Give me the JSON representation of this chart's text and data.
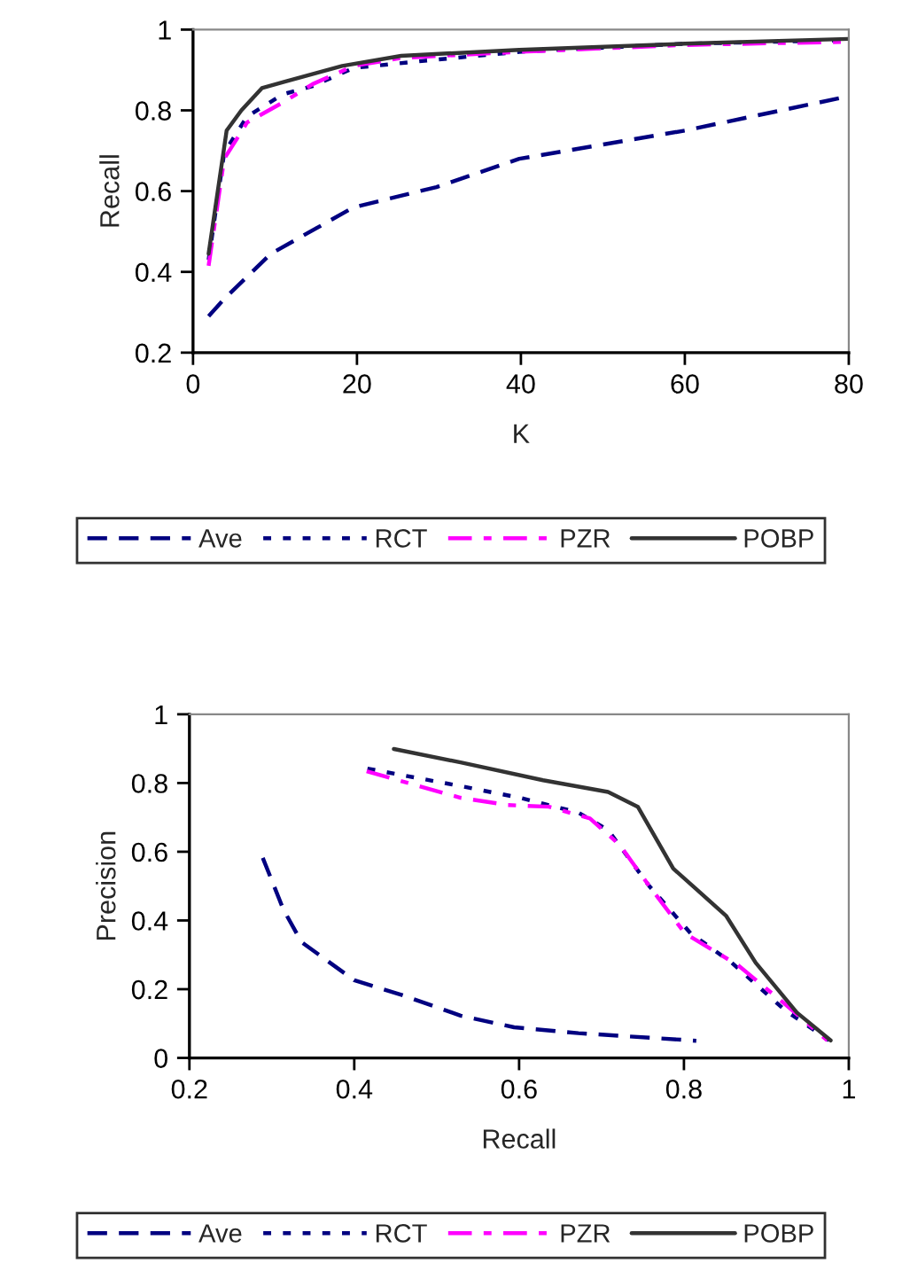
{
  "chart_data": [
    {
      "type": "line",
      "xlabel": "K",
      "ylabel": "Recall",
      "xlim": [
        0,
        80
      ],
      "xticks": [
        0,
        20,
        40,
        60,
        80
      ],
      "ylim": [
        0.2,
        1
      ],
      "yticks": [
        0.2,
        0.4,
        0.6,
        0.8,
        1
      ],
      "grid": false,
      "legend": "bottom",
      "marker": "none",
      "series": [
        {
          "name": "Ave",
          "color": "#000080",
          "line_style": "dashed",
          "x": [
            1.9,
            3.9,
            9.5,
            19.6,
            29.7,
            39.8,
            60,
            80
          ],
          "values": [
            0.29,
            0.335,
            0.445,
            0.56,
            0.61,
            0.68,
            0.75,
            0.835
          ]
        },
        {
          "name": "RCT",
          "color": "#000080",
          "line_style": "dotted",
          "x": [
            1.9,
            3.8,
            6.6,
            11,
            14.6,
            19.6,
            26.8,
            39.8,
            60,
            80
          ],
          "values": [
            0.43,
            0.695,
            0.785,
            0.84,
            0.86,
            0.905,
            0.92,
            0.945,
            0.965,
            0.974
          ]
        },
        {
          "name": "PZR",
          "color": "#ff00ff",
          "line_style": "dashdot",
          "x": [
            1.9,
            3.8,
            6.6,
            11,
            14.6,
            19.6,
            25.4,
            39.8,
            60,
            80
          ],
          "values": [
            0.415,
            0.68,
            0.77,
            0.82,
            0.865,
            0.91,
            0.93,
            0.945,
            0.962,
            0.97
          ]
        },
        {
          "name": "POBP",
          "color": "#333333",
          "line_style": "solid",
          "x": [
            1.9,
            4.1,
            5.9,
            8.4,
            11,
            18.2,
            25.4,
            39.8,
            60,
            80
          ],
          "values": [
            0.445,
            0.75,
            0.8,
            0.855,
            0.87,
            0.91,
            0.935,
            0.95,
            0.965,
            0.977
          ]
        }
      ]
    },
    {
      "type": "line",
      "xlabel": "Recall",
      "ylabel": "Precision",
      "xlim": [
        0.2,
        1
      ],
      "xticks": [
        0.2,
        0.4,
        0.6,
        0.8,
        1
      ],
      "ylim": [
        0,
        1
      ],
      "yticks": [
        0,
        0.2,
        0.4,
        0.6,
        0.8,
        1
      ],
      "grid": false,
      "legend": "bottom",
      "marker": "none",
      "series": [
        {
          "name": "Ave",
          "color": "#000080",
          "line_style": "dashed",
          "x": [
            0.289,
            0.314,
            0.336,
            0.4,
            0.458,
            0.529,
            0.594,
            0.672,
            0.815
          ],
          "values": [
            0.582,
            0.432,
            0.337,
            0.226,
            0.183,
            0.123,
            0.089,
            0.072,
            0.05
          ]
        },
        {
          "name": "RCT",
          "color": "#000080",
          "line_style": "dotted",
          "x": [
            0.416,
            0.529,
            0.601,
            0.672,
            0.708,
            0.758,
            0.808,
            0.858,
            0.922,
            0.976
          ],
          "values": [
            0.842,
            0.791,
            0.757,
            0.714,
            0.663,
            0.5,
            0.363,
            0.277,
            0.14,
            0.051
          ]
        },
        {
          "name": "PZR",
          "color": "#ff00ff",
          "line_style": "dashdot",
          "x": [
            0.415,
            0.529,
            0.586,
            0.636,
            0.686,
            0.722,
            0.758,
            0.801,
            0.866,
            0.922,
            0.974
          ],
          "values": [
            0.834,
            0.757,
            0.736,
            0.731,
            0.697,
            0.62,
            0.5,
            0.363,
            0.269,
            0.158,
            0.051
          ]
        },
        {
          "name": "POBP",
          "color": "#333333",
          "line_style": "solid",
          "x": [
            0.448,
            0.529,
            0.629,
            0.708,
            0.744,
            0.787,
            0.815,
            0.851,
            0.887,
            0.937,
            0.978
          ],
          "values": [
            0.899,
            0.86,
            0.808,
            0.774,
            0.731,
            0.551,
            0.491,
            0.414,
            0.277,
            0.132,
            0.051
          ]
        }
      ]
    }
  ]
}
